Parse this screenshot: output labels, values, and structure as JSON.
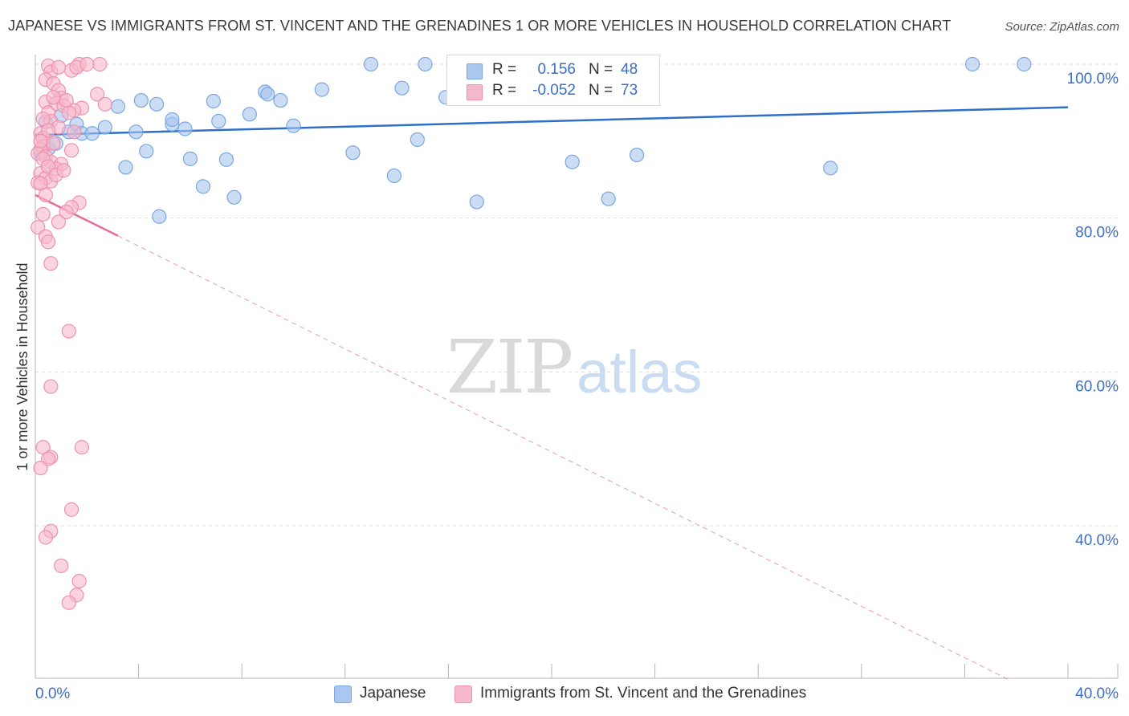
{
  "title": "JAPANESE VS IMMIGRANTS FROM ST. VINCENT AND THE GRENADINES 1 OR MORE VEHICLES IN HOUSEHOLD CORRELATION CHART",
  "source": "Source: ZipAtlas.com",
  "watermark": {
    "zip": "ZIP",
    "atlas": "atlas"
  },
  "colors": {
    "japanese_fill": "#a9c7ef",
    "japanese_stroke": "#7aa6e0",
    "japanese_line": "#2f6fcc",
    "svg_fill": "#f6b9cc",
    "svg_stroke": "#ee91b0",
    "svg_line": "#e8699a",
    "axis_label": "#3b6fc4",
    "grid": "#dcdcdc"
  },
  "legend": {
    "rows": [
      {
        "r_label": "R =",
        "r_value": "0.156",
        "n_label": "N =",
        "n_value": "48"
      },
      {
        "r_label": "R =",
        "r_value": "-0.052",
        "n_label": "N =",
        "n_value": "73"
      }
    ]
  },
  "bottom_legend": [
    "Japanese",
    "Immigrants from St. Vincent and the Grenadines"
  ],
  "chart_data": {
    "type": "scatter",
    "xlabel": "",
    "ylabel": "1 or more Vehicles in Household",
    "xlim": [
      0,
      40
    ],
    "ylim": [
      20,
      103
    ],
    "x_tick_labels": [
      {
        "value": 0,
        "label": "0.0%"
      },
      {
        "value": 40,
        "label": "40.0%"
      }
    ],
    "y_tick_labels": [
      {
        "value": 100,
        "label": "100.0%"
      },
      {
        "value": 80,
        "label": "80.0%"
      },
      {
        "value": 60,
        "label": "60.0%"
      },
      {
        "value": 40,
        "label": "40.0%"
      }
    ],
    "grid": "horizontal dashed",
    "series": [
      {
        "name": "Japanese",
        "r": 0.156,
        "n": 48,
        "trend": {
          "x": [
            0,
            40
          ],
          "y": [
            90.8,
            94.4
          ],
          "dashed_extension": false
        },
        "points": [
          [
            0.2,
            88.5
          ],
          [
            0.4,
            92.5
          ],
          [
            0.5,
            89.0
          ],
          [
            0.8,
            89.7
          ],
          [
            1.0,
            93.3
          ],
          [
            1.3,
            91.2
          ],
          [
            1.6,
            92.2
          ],
          [
            1.8,
            91.0
          ],
          [
            2.2,
            91.0
          ],
          [
            2.7,
            91.8
          ],
          [
            3.2,
            94.5
          ],
          [
            3.5,
            86.6
          ],
          [
            3.9,
            91.2
          ],
          [
            4.1,
            95.3
          ],
          [
            4.3,
            88.7
          ],
          [
            4.7,
            94.8
          ],
          [
            4.8,
            80.2
          ],
          [
            5.3,
            92.2
          ],
          [
            5.3,
            92.8
          ],
          [
            5.8,
            91.6
          ],
          [
            6.0,
            87.7
          ],
          [
            6.5,
            84.1
          ],
          [
            6.9,
            95.2
          ],
          [
            7.1,
            92.6
          ],
          [
            7.4,
            87.6
          ],
          [
            7.7,
            82.7
          ],
          [
            8.3,
            93.5
          ],
          [
            8.9,
            96.4
          ],
          [
            9.0,
            96.1
          ],
          [
            9.5,
            95.3
          ],
          [
            10.0,
            92.0
          ],
          [
            11.1,
            96.7
          ],
          [
            12.3,
            88.5
          ],
          [
            13.0,
            100.0
          ],
          [
            13.9,
            85.5
          ],
          [
            14.2,
            96.9
          ],
          [
            14.8,
            90.2
          ],
          [
            15.1,
            100.0
          ],
          [
            15.9,
            95.7
          ],
          [
            16.2,
            100.0
          ],
          [
            17.1,
            82.1
          ],
          [
            20.8,
            87.3
          ],
          [
            22.2,
            82.5
          ],
          [
            23.3,
            88.2
          ],
          [
            30.8,
            86.5
          ],
          [
            36.3,
            100.0
          ],
          [
            38.3,
            100.0
          ],
          [
            0.3,
            89.2
          ]
        ]
      },
      {
        "name": "Immigrants from St. Vincent and the Grenadines",
        "r": -0.052,
        "n": 73,
        "trend": {
          "x": [
            0,
            3.2
          ],
          "y": [
            83.0,
            77.7
          ],
          "dashed_extension": {
            "x": [
              3.2,
              37.7
            ],
            "y": [
              77.7,
              20.0
            ]
          }
        },
        "points": [
          [
            0.5,
            99.8
          ],
          [
            0.6,
            99.0
          ],
          [
            0.4,
            98.0
          ],
          [
            0.7,
            97.5
          ],
          [
            0.9,
            96.6
          ],
          [
            1.0,
            95.6
          ],
          [
            0.4,
            95.1
          ],
          [
            0.8,
            94.9
          ],
          [
            1.1,
            94.6
          ],
          [
            0.5,
            93.7
          ],
          [
            0.6,
            92.6
          ],
          [
            0.9,
            91.8
          ],
          [
            0.2,
            91.0
          ],
          [
            0.3,
            90.4
          ],
          [
            0.3,
            89.3
          ],
          [
            0.2,
            88.9
          ],
          [
            0.1,
            88.4
          ],
          [
            0.4,
            88.0
          ],
          [
            0.6,
            87.3
          ],
          [
            1.0,
            87.0
          ],
          [
            0.8,
            86.4
          ],
          [
            0.2,
            85.8
          ],
          [
            0.4,
            85.2
          ],
          [
            0.6,
            84.8
          ],
          [
            0.1,
            84.6
          ],
          [
            1.4,
            99.2
          ],
          [
            1.7,
            100.0
          ],
          [
            1.6,
            99.6
          ],
          [
            2.5,
            100.0
          ],
          [
            2.4,
            96.1
          ],
          [
            2.7,
            94.8
          ],
          [
            1.8,
            94.3
          ],
          [
            1.5,
            94.0
          ],
          [
            1.3,
            93.7
          ],
          [
            1.4,
            88.8
          ],
          [
            1.7,
            82.0
          ],
          [
            1.4,
            81.4
          ],
          [
            1.2,
            80.8
          ],
          [
            0.3,
            80.5
          ],
          [
            0.9,
            79.5
          ],
          [
            0.1,
            78.8
          ],
          [
            0.4,
            77.6
          ],
          [
            0.5,
            76.9
          ],
          [
            0.6,
            74.1
          ],
          [
            1.3,
            65.3
          ],
          [
            0.6,
            58.1
          ],
          [
            1.8,
            50.2
          ],
          [
            0.3,
            50.2
          ],
          [
            0.6,
            48.9
          ],
          [
            0.5,
            48.7
          ],
          [
            0.2,
            47.5
          ],
          [
            1.4,
            42.1
          ],
          [
            0.6,
            39.3
          ],
          [
            0.4,
            38.5
          ],
          [
            1.0,
            34.8
          ],
          [
            1.7,
            32.8
          ],
          [
            1.6,
            31.0
          ],
          [
            1.3,
            30.0
          ],
          [
            0.9,
            99.6
          ],
          [
            0.7,
            95.7
          ],
          [
            1.2,
            95.3
          ],
          [
            0.3,
            92.9
          ],
          [
            0.5,
            91.4
          ],
          [
            0.2,
            90.0
          ],
          [
            0.7,
            89.7
          ],
          [
            0.3,
            87.7
          ],
          [
            0.5,
            86.7
          ],
          [
            0.8,
            85.6
          ],
          [
            0.2,
            84.5
          ],
          [
            0.4,
            83.0
          ],
          [
            1.1,
            86.2
          ],
          [
            2.0,
            100.0
          ],
          [
            1.5,
            91.2
          ]
        ]
      }
    ]
  }
}
